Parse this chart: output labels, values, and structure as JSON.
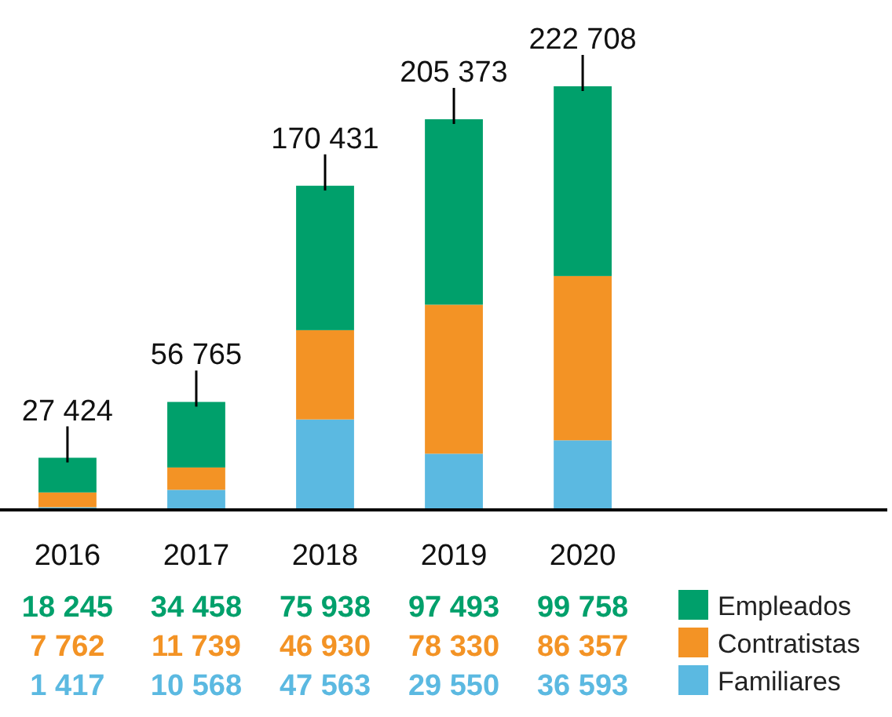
{
  "chart_data": {
    "type": "bar",
    "stacked": true,
    "categories": [
      "2016",
      "2017",
      "2018",
      "2019",
      "2020"
    ],
    "series": [
      {
        "name": "Familiares",
        "color": "#5bb9e1",
        "values": [
          1417,
          10568,
          47563,
          29550,
          36593
        ]
      },
      {
        "name": "Contratistas",
        "color": "#f39325",
        "values": [
          7762,
          11739,
          46930,
          78330,
          86357
        ]
      },
      {
        "name": "Empleados",
        "color": "#00a06b",
        "values": [
          18245,
          34458,
          75938,
          97493,
          99758
        ]
      }
    ],
    "totals": [
      "27 424",
      "56 765",
      "170 431",
      "205 373",
      "222 708"
    ],
    "data_labels": true,
    "legend": "bottom right"
  }
}
